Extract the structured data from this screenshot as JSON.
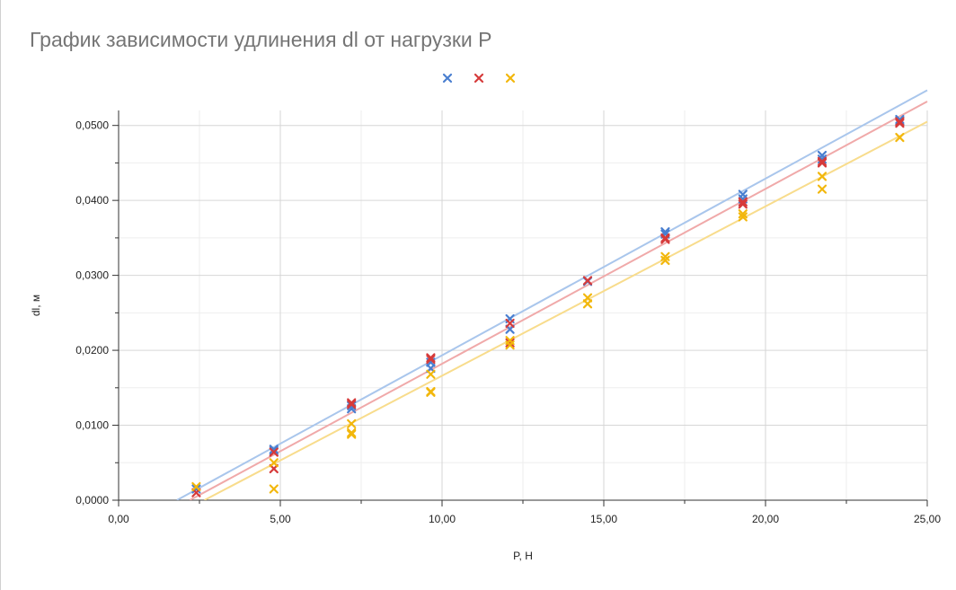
{
  "chart_data": {
    "type": "scatter",
    "title": "График зависимости удлинения dl от нагрузки P",
    "xlabel": "P, Н",
    "ylabel": "dl, м",
    "xlim": [
      0,
      25
    ],
    "ylim": [
      0,
      0.052
    ],
    "x_ticks": [
      "0,00",
      "5,00",
      "10,00",
      "15,00",
      "20,00",
      "25,00"
    ],
    "y_ticks": [
      "0,0000",
      "0,0100",
      "0,0200",
      "0,0300",
      "0,0400",
      "0,0500"
    ],
    "grid": true,
    "legend": "top-center",
    "series": [
      {
        "color": "#4a7fd0",
        "trend_color": "#a9c6ec",
        "points": [
          [
            2.4,
            0.0015
          ],
          [
            4.8,
            0.0068
          ],
          [
            4.8,
            0.0066
          ],
          [
            7.2,
            0.0122
          ],
          [
            7.2,
            0.0126
          ],
          [
            9.65,
            0.0176
          ],
          [
            9.65,
            0.0184
          ],
          [
            12.1,
            0.0242
          ],
          [
            12.1,
            0.0228
          ],
          [
            14.5,
            0.0292
          ],
          [
            16.9,
            0.0358
          ],
          [
            16.9,
            0.0355
          ],
          [
            19.3,
            0.0408
          ],
          [
            19.3,
            0.0402
          ],
          [
            21.75,
            0.046
          ],
          [
            21.75,
            0.0455
          ],
          [
            24.15,
            0.0508
          ],
          [
            24.15,
            0.0506
          ]
        ],
        "trend": [
          [
            1.8,
            0.0
          ],
          [
            25,
            0.0547
          ]
        ]
      },
      {
        "color": "#d63b3b",
        "trend_color": "#f0a9a9",
        "points": [
          [
            2.4,
            0.001
          ],
          [
            4.8,
            0.0064
          ],
          [
            4.8,
            0.0042
          ],
          [
            7.2,
            0.013
          ],
          [
            7.2,
            0.0128
          ],
          [
            9.65,
            0.019
          ],
          [
            9.65,
            0.0188
          ],
          [
            12.1,
            0.0236
          ],
          [
            12.1,
            0.021
          ],
          [
            14.5,
            0.0293
          ],
          [
            16.9,
            0.035
          ],
          [
            16.9,
            0.0348
          ],
          [
            19.3,
            0.0398
          ],
          [
            19.3,
            0.0395
          ],
          [
            21.75,
            0.0452
          ],
          [
            21.75,
            0.045
          ],
          [
            24.15,
            0.0505
          ],
          [
            24.15,
            0.0503
          ]
        ],
        "trend": [
          [
            2.2,
            0.0
          ],
          [
            25,
            0.0532
          ]
        ]
      },
      {
        "color": "#f2b70c",
        "trend_color": "#f8dc8c",
        "points": [
          [
            2.4,
            0.0018
          ],
          [
            4.8,
            0.005
          ],
          [
            4.8,
            0.0015
          ],
          [
            7.2,
            0.0102
          ],
          [
            7.2,
            0.009
          ],
          [
            7.2,
            0.0088
          ],
          [
            9.65,
            0.0168
          ],
          [
            9.65,
            0.0145
          ],
          [
            9.65,
            0.0144
          ],
          [
            12.1,
            0.0213
          ],
          [
            12.1,
            0.0207
          ],
          [
            14.5,
            0.027
          ],
          [
            14.5,
            0.0262
          ],
          [
            16.9,
            0.0325
          ],
          [
            16.9,
            0.032
          ],
          [
            19.3,
            0.0382
          ],
          [
            19.3,
            0.0378
          ],
          [
            21.75,
            0.0432
          ],
          [
            21.75,
            0.0415
          ],
          [
            24.15,
            0.0484
          ]
        ],
        "trend": [
          [
            2.65,
            0.0
          ],
          [
            25,
            0.0505
          ]
        ]
      }
    ]
  }
}
